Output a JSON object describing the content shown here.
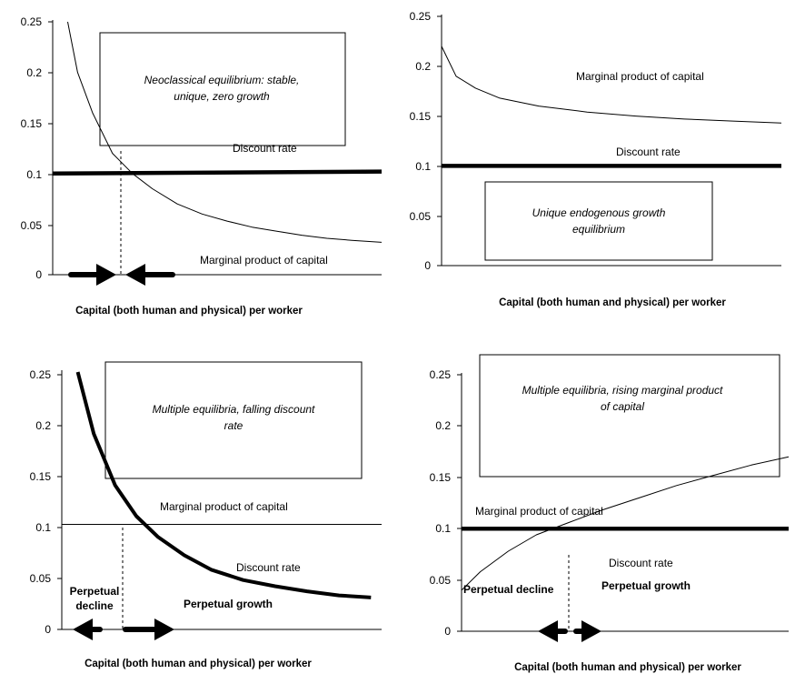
{
  "chart_data": [
    {
      "type": "line",
      "panel": "top-left",
      "xlabel": "Capital (both human and physical) per worker",
      "ylabel": "",
      "yticks": [
        "0",
        "0.05",
        "0.1",
        "0.15",
        "0.2",
        "0.25"
      ],
      "ylim": [
        0,
        0.25
      ],
      "grid": false,
      "box_lines": [
        "Neoclassical equilibrium: stable,",
        "unique, zero growth"
      ],
      "series": [
        {
          "name": "Marginal product of capital",
          "x": [
            0.3,
            0.5,
            0.8,
            1.2,
            1.6,
            2.0,
            2.5,
            3.0,
            3.5,
            4.0,
            4.5,
            5.0,
            5.5,
            6.0,
            6.6
          ],
          "y": [
            0.25,
            0.2,
            0.16,
            0.12,
            0.1,
            0.085,
            0.07,
            0.06,
            0.053,
            0.047,
            0.043,
            0.039,
            0.036,
            0.034,
            0.032
          ]
        },
        {
          "name": "Discount rate",
          "x": [
            0,
            6.6
          ],
          "y": [
            0.1,
            0.102
          ]
        }
      ]
    },
    {
      "type": "line",
      "panel": "top-right",
      "xlabel": "Capital (both human and physical) per worker",
      "ylabel": "",
      "yticks": [
        "0",
        "0.05",
        "0.1",
        "0.15",
        "0.2",
        "0.25"
      ],
      "ylim": [
        0,
        0.25
      ],
      "grid": false,
      "box_lines": [
        "Unique endogenous growth",
        "equilibrium"
      ],
      "series": [
        {
          "name": "Marginal product of capital",
          "x": [
            0,
            0.3,
            0.7,
            1.2,
            2.0,
            3.0,
            4.0,
            5.0,
            6.0,
            7.0
          ],
          "y": [
            0.22,
            0.19,
            0.178,
            0.168,
            0.16,
            0.154,
            0.15,
            0.147,
            0.145,
            0.143
          ]
        },
        {
          "name": "Discount rate",
          "x": [
            0,
            7.0
          ],
          "y": [
            0.1,
            0.1
          ]
        }
      ]
    },
    {
      "type": "line",
      "panel": "bottom-left",
      "xlabel": "Capital (both human and physical) per worker",
      "ylabel": "",
      "yticks": [
        "0",
        "0.05",
        "0.1",
        "0.15",
        "0.2",
        "0.25"
      ],
      "ylim": [
        0,
        0.25
      ],
      "grid": false,
      "box_lines": [
        "Multiple equilibria, falling discount",
        "rate"
      ],
      "region_labels": {
        "left": [
          "Perpetual",
          "decline"
        ],
        "right": "Perpetual growth"
      },
      "series": [
        {
          "name": "Marginal product of capital",
          "x": [
            0,
            6.0
          ],
          "y": [
            0.102,
            0.102
          ]
        },
        {
          "name": "Discount rate",
          "x": [
            0.3,
            0.6,
            1.0,
            1.4,
            1.8,
            2.3,
            2.8,
            3.4,
            4.0,
            4.6,
            5.2,
            5.8
          ],
          "y": [
            0.25,
            0.19,
            0.14,
            0.11,
            0.09,
            0.072,
            0.058,
            0.048,
            0.042,
            0.037,
            0.033,
            0.031
          ]
        }
      ]
    },
    {
      "type": "line",
      "panel": "bottom-right",
      "xlabel": "Capital (both human and physical) per worker",
      "ylabel": "",
      "yticks": [
        "0",
        "0.05",
        "0.1",
        "0.15",
        "0.2",
        "0.25"
      ],
      "ylim": [
        0,
        0.25
      ],
      "grid": false,
      "box_lines": [
        "Multiple equilibria, rising marginal product",
        "of capital"
      ],
      "region_labels": {
        "left": "Perpetual decline",
        "right": "Perpetual growth"
      },
      "series": [
        {
          "name": "Marginal product of capital",
          "x": [
            0,
            0.4,
            1.0,
            1.6,
            2.3,
            3.0,
            3.8,
            4.6,
            5.4,
            6.2,
            7.0
          ],
          "y": [
            0.04,
            0.058,
            0.078,
            0.094,
            0.106,
            0.118,
            0.13,
            0.142,
            0.152,
            0.162,
            0.17
          ]
        },
        {
          "name": "Discount rate",
          "x": [
            0,
            7.0
          ],
          "y": [
            0.1,
            0.1
          ]
        }
      ]
    }
  ]
}
